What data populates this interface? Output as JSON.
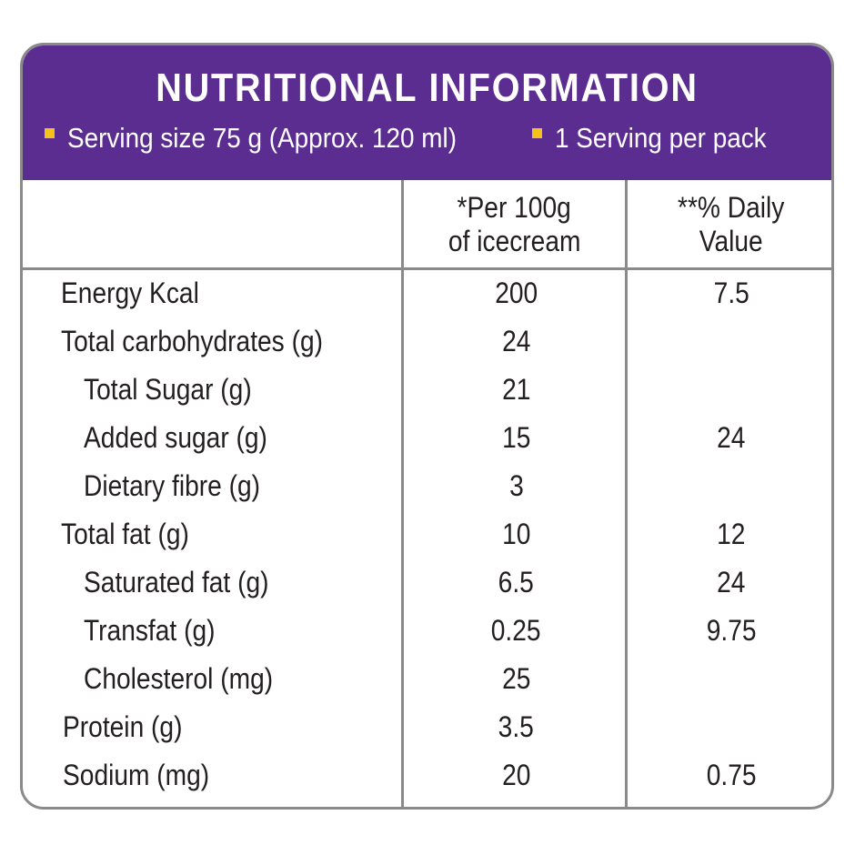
{
  "title": "NUTRITIONAL INFORMATION",
  "serving_info": [
    {
      "text": "Serving size 75 g (Approx. 120 ml)"
    },
    {
      "text": "1 Serving per pack"
    }
  ],
  "columns": {
    "per100g": [
      "*Per 100g",
      "of icecream"
    ],
    "daily_value": [
      "**% Daily",
      "Value"
    ]
  },
  "rows": [
    {
      "name": "Energy Kcal",
      "per100g": "200",
      "daily_value": "7.5"
    },
    {
      "name": "Total carbohydrates (g)",
      "per100g": "24",
      "daily_value": ""
    },
    {
      "name": "Total Sugar (g)",
      "per100g": "21",
      "daily_value": ""
    },
    {
      "name": "Added sugar (g)",
      "per100g": "15",
      "daily_value": "24"
    },
    {
      "name": "Dietary fibre (g)",
      "per100g": "3",
      "daily_value": ""
    },
    {
      "name": "Total fat (g)",
      "per100g": "10",
      "daily_value": "12"
    },
    {
      "name": "Saturated fat (g)",
      "per100g": "6.5",
      "daily_value": "24"
    },
    {
      "name": "Transfat (g)",
      "per100g": "0.25",
      "daily_value": "9.75"
    },
    {
      "name": "Cholesterol (mg)",
      "per100g": "25",
      "daily_value": ""
    },
    {
      "name": "Protein (g)",
      "per100g": "3.5",
      "daily_value": ""
    },
    {
      "name": "Sodium (mg)",
      "per100g": "20",
      "daily_value": "0.75"
    }
  ],
  "colors": {
    "header_bg": "#5c2d91",
    "bullet": "#f5c21b",
    "border": "#8a8a8a",
    "text": "#231f20"
  }
}
